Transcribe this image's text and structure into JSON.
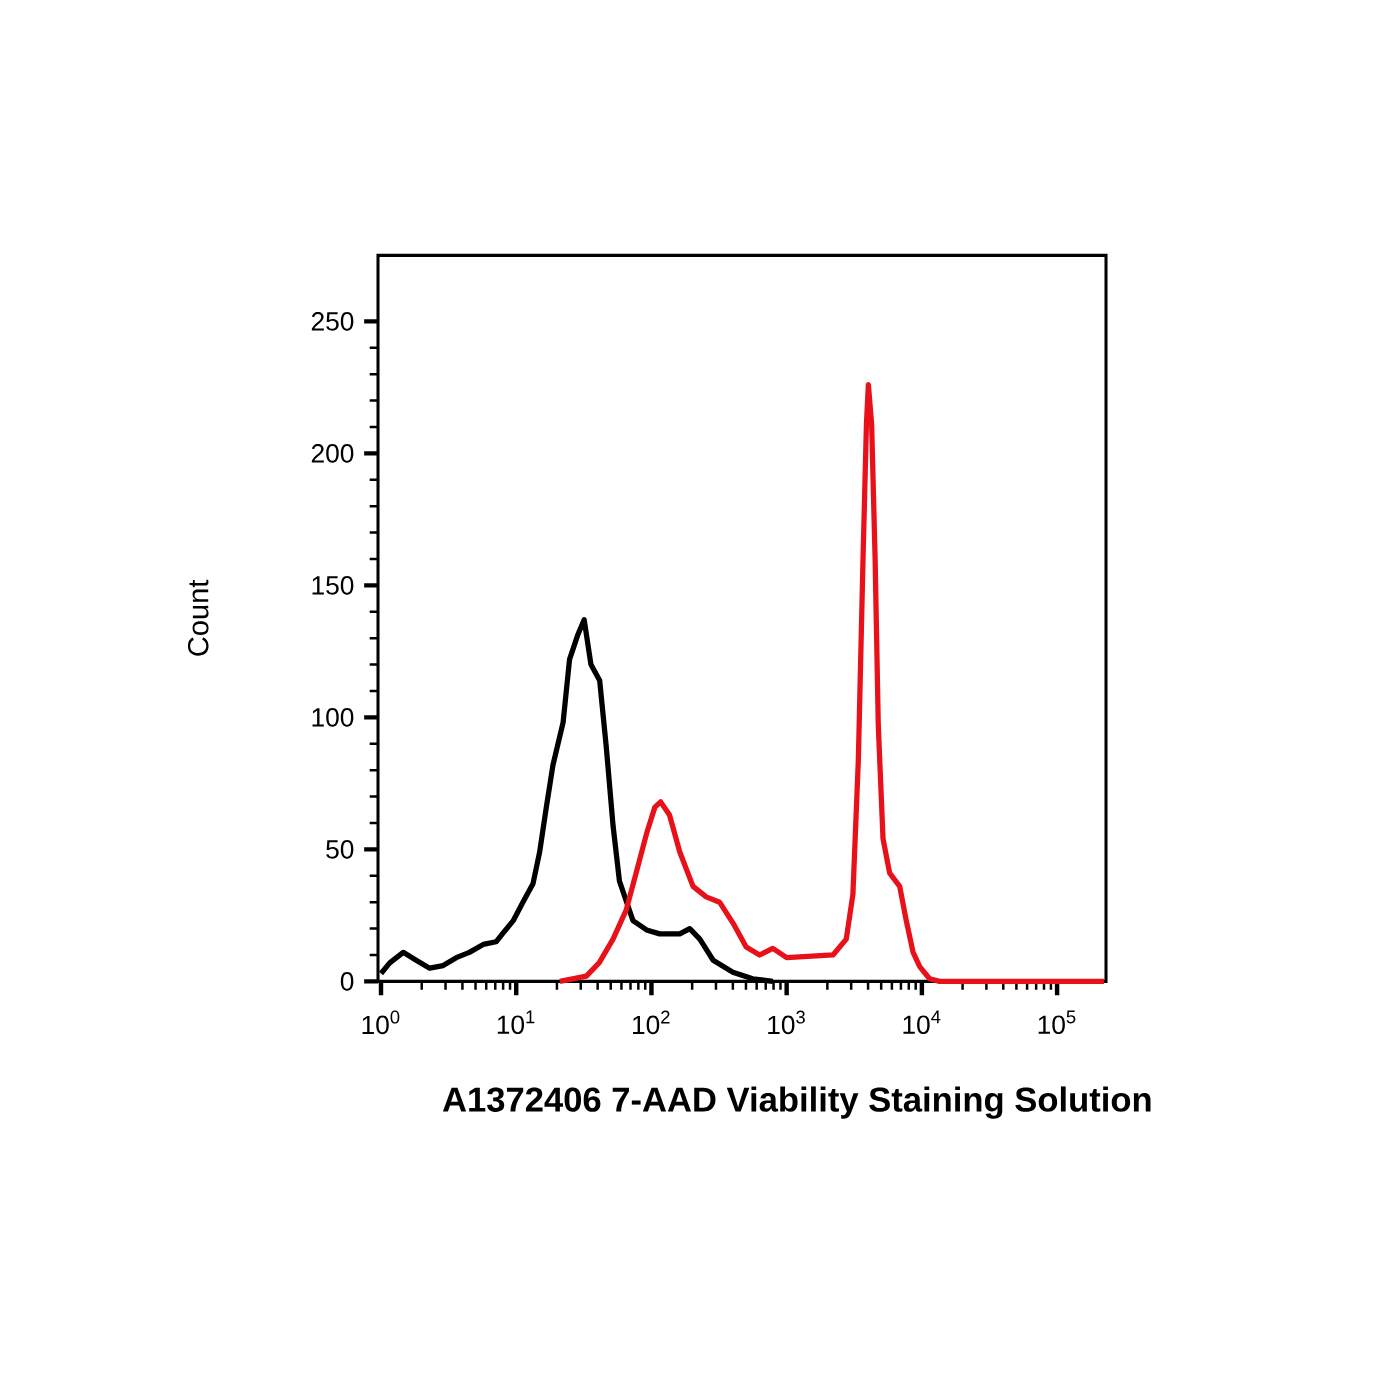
{
  "chart_data": {
    "type": "line",
    "xlabel": "A1372406 7-AAD Viability Staining Solution",
    "ylabel": "Count",
    "log": "x",
    "xlim": [
      0.95,
      230000
    ],
    "ylim": [
      0,
      275
    ],
    "xticks": [
      {
        "value": 1,
        "label": "10$^{0}$"
      },
      {
        "value": 10,
        "label": "10$^{1}$"
      },
      {
        "value": 100,
        "label": "10$^{2}$"
      },
      {
        "value": 1000,
        "label": "10$^{3}$"
      },
      {
        "value": 10000,
        "label": "10$^{4}$"
      },
      {
        "value": 100000,
        "label": "10$^{5}$"
      }
    ],
    "yticks": [
      0,
      50,
      100,
      150,
      200,
      250
    ],
    "series": [
      {
        "color": "#000000",
        "x": [
          1.0,
          1.16,
          1.46,
          1.82,
          2.29,
          2.88,
          3.6,
          4.5,
          5.7,
          7.1,
          7.9,
          9.5,
          11.2,
          13.3,
          14.9,
          16.7,
          18.7,
          22.2,
          24.8,
          28.4,
          31.8,
          35.7,
          41.4,
          46.3,
          52,
          58,
          73,
          92,
          115,
          162,
          192,
          228,
          286,
          400,
          560,
          790
        ],
        "values": [
          3,
          7,
          11,
          8,
          5,
          6,
          9,
          11,
          14,
          15,
          18,
          23,
          30,
          37,
          49,
          66,
          82,
          98,
          122,
          131,
          137,
          120,
          114,
          89,
          59,
          38,
          23,
          19.5,
          18,
          18,
          20,
          16,
          8,
          3.5,
          1,
          0
        ]
      },
      {
        "color": "#e8111a",
        "x": [
          21,
          33,
          41,
          52,
          65,
          77,
          92,
          106,
          117,
          136,
          162,
          203,
          254,
          319,
          402,
          502,
          631,
          790,
          1000,
          2200,
          2760,
          3090,
          3390,
          3670,
          3890,
          4020,
          4250,
          4510,
          4760,
          5160,
          5780,
          6850,
          7670,
          8610,
          9640,
          11400,
          13500,
          222000
        ],
        "values": [
          0,
          2,
          7,
          16,
          27,
          41,
          56,
          66,
          68,
          63,
          49,
          36,
          32,
          30,
          22,
          13,
          10,
          12.5,
          9,
          10,
          16,
          33,
          84,
          160,
          211,
          226,
          211,
          160,
          97,
          54,
          41,
          36,
          23,
          11,
          5.6,
          1,
          0,
          0
        ]
      }
    ]
  }
}
